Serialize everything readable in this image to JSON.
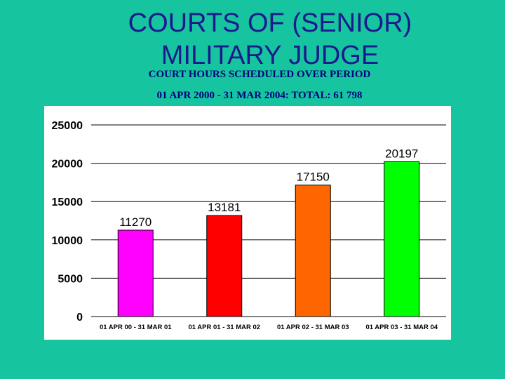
{
  "slide": {
    "title_line1": "COURTS OF (SENIOR)",
    "title_line2": "MILITARY JUDGE",
    "subtitle_line1": "COURT HOURS SCHEDULED OVER PERIOD",
    "subtitle_line2": "01 APR 2000 - 31 MAR 2004:  TOTAL:  61 798"
  },
  "colors": {
    "background": "#17c4a0",
    "title": "#1a1a8c",
    "bars": [
      "#ff00ff",
      "#ff0000",
      "#ff6600",
      "#00ff00"
    ]
  },
  "chart_data": {
    "type": "bar",
    "categories": [
      "01 APR 00 - 31 MAR 01",
      "01 APR 01 - 31 MAR 02",
      "01 APR 02 - 31 MAR 03",
      "01 APR 03 - 31 MAR 04"
    ],
    "values": [
      11270,
      13181,
      17150,
      20197
    ],
    "data_labels": [
      "11270",
      "13181",
      "17150",
      "20197"
    ],
    "yticks": [
      0,
      5000,
      10000,
      15000,
      20000,
      25000
    ],
    "ylim": [
      0,
      25000
    ],
    "grid": true,
    "legend": "none"
  }
}
